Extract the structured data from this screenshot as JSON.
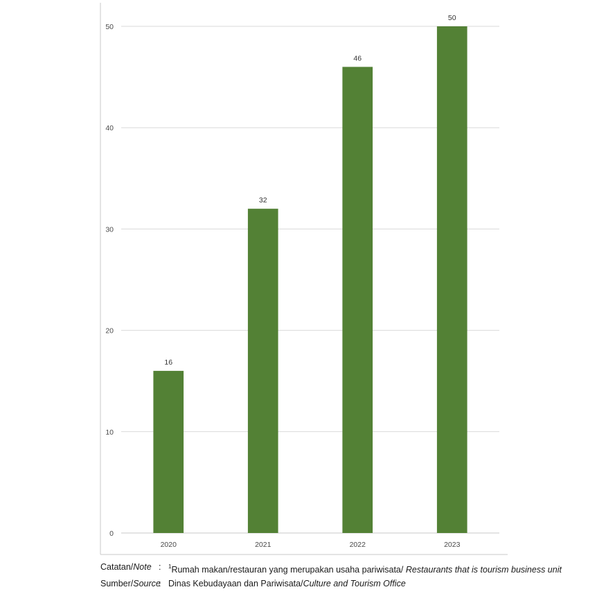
{
  "chart_data": {
    "type": "bar",
    "categories": [
      "2020",
      "2021",
      "2022",
      "2023"
    ],
    "values": [
      16,
      32,
      46,
      50
    ],
    "ylim": [
      0,
      50
    ],
    "yticks": [
      0,
      10,
      20,
      30,
      40,
      50
    ],
    "grid": true,
    "legend": "none",
    "bar_color": "#538135",
    "title": "",
    "xlabel": "",
    "ylabel": ""
  },
  "notes": {
    "note_key_a": "Catatan/",
    "note_key_b": "Note",
    "note_colon": ":",
    "note_sup": "1",
    "note_text_a": "Rumah makan/restauran yang merupakan usaha pariwisata/ ",
    "note_text_b": "Restaurants that is tourism business unit",
    "source_key_a": "Sumber/",
    "source_key_b": "Source",
    "source_colon": ":",
    "source_text_a": "Dinas Kebudayaan dan Pariwisata/",
    "source_text_b": "Culture and Tourism Office"
  }
}
